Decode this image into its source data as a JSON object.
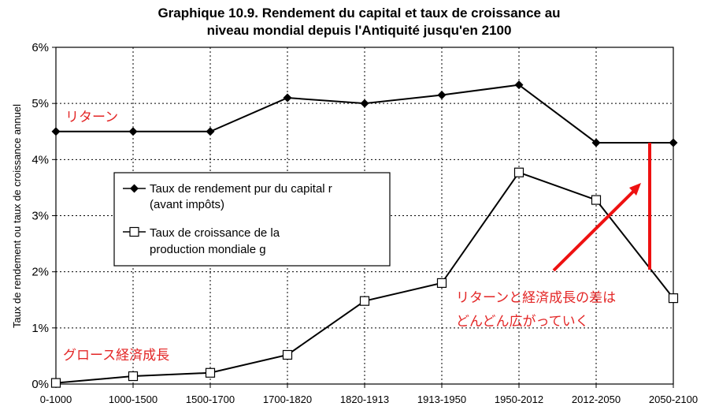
{
  "chart_data": {
    "type": "line",
    "title": [
      "Graphique 10.9. Rendement du capital et taux de croissance au",
      "niveau mondial depuis l'Antiquité jusqu'en 2100"
    ],
    "ylabel": "Taux de rendement ou taux de croissance annuel",
    "xlabel": "",
    "categories": [
      "0-1000",
      "1000-1500",
      "1500-1700",
      "1700-1820",
      "1820-1913",
      "1913-1950",
      "1950-2012",
      "2012-2050",
      "2050-2100"
    ],
    "y_ticks": [
      "0%",
      "1%",
      "2%",
      "3%",
      "4%",
      "5%",
      "6%"
    ],
    "ylim": [
      0,
      6
    ],
    "grid": true,
    "legend_position": "left-center",
    "series": [
      {
        "name": "Taux de rendement pur du capital r (avant impôts)",
        "legend_lines": [
          "Taux de rendement pur du capital r",
          "(avant impôts)"
        ],
        "marker": "filled-diamond",
        "color": "#000000",
        "values": [
          4.5,
          4.5,
          4.5,
          5.1,
          5.0,
          5.15,
          5.33,
          4.3,
          4.3
        ]
      },
      {
        "name": "Taux de croissance de la production mondiale g",
        "legend_lines": [
          "Taux de croissance de la",
          "production mondiale g"
        ],
        "marker": "hollow-square",
        "color": "#000000",
        "values": [
          0.02,
          0.14,
          0.2,
          0.52,
          1.48,
          1.8,
          3.77,
          3.28,
          1.53
        ]
      }
    ],
    "annotations": [
      {
        "text": "リターン",
        "color": "#e32626"
      },
      {
        "text": "グロース経済成長",
        "color": "#e32626"
      },
      {
        "text_lines": [
          "リターンと経済成長の差は",
          "どんどん広がっていく"
        ],
        "color": "#e32626"
      }
    ]
  }
}
